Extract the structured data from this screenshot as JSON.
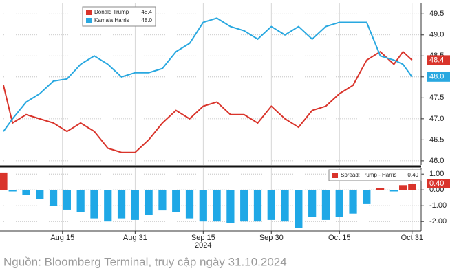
{
  "chart_data": [
    {
      "type": "line",
      "x": [
        "2024-08-02",
        "2024-08-04",
        "2024-08-07",
        "2024-08-10",
        "2024-08-13",
        "2024-08-16",
        "2024-08-19",
        "2024-08-22",
        "2024-08-25",
        "2024-08-28",
        "2024-08-31",
        "2024-09-03",
        "2024-09-06",
        "2024-09-09",
        "2024-09-12",
        "2024-09-15",
        "2024-09-18",
        "2024-09-21",
        "2024-09-24",
        "2024-09-27",
        "2024-09-30",
        "2024-10-03",
        "2024-10-06",
        "2024-10-09",
        "2024-10-12",
        "2024-10-15",
        "2024-10-18",
        "2024-10-21",
        "2024-10-24",
        "2024-10-27",
        "2024-10-29",
        "2024-10-31"
      ],
      "series": [
        {
          "name": "Donald Trump",
          "color": "#d9342b",
          "legend_value": "48.4",
          "values": [
            47.8,
            46.9,
            47.1,
            47.0,
            46.9,
            46.7,
            46.9,
            46.7,
            46.3,
            46.2,
            46.2,
            46.5,
            46.9,
            47.2,
            47.0,
            47.3,
            47.4,
            47.1,
            47.1,
            46.9,
            47.3,
            47.0,
            46.8,
            47.2,
            47.3,
            47.6,
            47.8,
            48.4,
            48.6,
            48.3,
            48.6,
            48.4
          ]
        },
        {
          "name": "Kamala Harris",
          "color": "#29a8e0",
          "legend_value": "48.0",
          "values": [
            46.7,
            47.0,
            47.4,
            47.6,
            47.9,
            47.95,
            48.3,
            48.5,
            48.3,
            48.0,
            48.1,
            48.1,
            48.2,
            48.6,
            48.8,
            49.3,
            49.4,
            49.2,
            49.1,
            48.9,
            49.2,
            49.0,
            49.2,
            48.9,
            49.2,
            49.3,
            49.3,
            49.3,
            48.5,
            48.4,
            48.3,
            48.0
          ]
        }
      ],
      "xlim": [
        "2024-08-02",
        "2024-11-02"
      ],
      "ylim": [
        45.9,
        49.75
      ],
      "yticks": [
        {
          "value": 46,
          "label": "46.0"
        },
        {
          "value": 46.5,
          "label": "46.5"
        },
        {
          "value": 47,
          "label": "47.0"
        },
        {
          "value": 47.5,
          "label": "47.5"
        },
        {
          "value": 48,
          "label": "48.0"
        },
        {
          "value": 48.5,
          "label": "48.5"
        },
        {
          "value": 49,
          "label": "49.0"
        },
        {
          "value": 49.5,
          "label": "49.5"
        }
      ],
      "grid": true
    },
    {
      "type": "bar",
      "name": "Spread: Trump - Harris",
      "legend_value": "0.40",
      "colors": {
        "positive": "#d9342b",
        "negative": "#1fa8e6"
      },
      "x": [
        "2024-08-02",
        "2024-08-04",
        "2024-08-07",
        "2024-08-10",
        "2024-08-13",
        "2024-08-16",
        "2024-08-19",
        "2024-08-22",
        "2024-08-25",
        "2024-08-28",
        "2024-08-31",
        "2024-09-03",
        "2024-09-06",
        "2024-09-09",
        "2024-09-12",
        "2024-09-15",
        "2024-09-18",
        "2024-09-21",
        "2024-09-24",
        "2024-09-27",
        "2024-09-30",
        "2024-10-03",
        "2024-10-06",
        "2024-10-09",
        "2024-10-12",
        "2024-10-15",
        "2024-10-18",
        "2024-10-21",
        "2024-10-24",
        "2024-10-27",
        "2024-10-29",
        "2024-10-31"
      ],
      "values": [
        1.1,
        -0.1,
        -0.3,
        -0.6,
        -1.0,
        -1.25,
        -1.4,
        -1.8,
        -2.0,
        -1.8,
        -1.9,
        -1.6,
        -1.3,
        -1.4,
        -1.8,
        -2.0,
        -2.0,
        -2.1,
        -2.0,
        -2.0,
        -1.9,
        -2.0,
        -2.4,
        -1.7,
        -1.9,
        -1.7,
        -1.5,
        -0.9,
        0.1,
        -0.1,
        0.3,
        0.4
      ],
      "xlim": [
        "2024-08-02",
        "2024-11-02"
      ],
      "ylim": [
        -2.6,
        1.4
      ],
      "yticks": [
        {
          "value": 1,
          "label": "1.00"
        },
        {
          "value": 0,
          "label": "0.00"
        },
        {
          "value": -1,
          "label": "-1.00"
        },
        {
          "value": -2,
          "label": "-2.00"
        }
      ],
      "xticks": [
        {
          "value": "2024-08-15",
          "label": "Aug 15"
        },
        {
          "value": "2024-08-31",
          "label": "Aug 31"
        },
        {
          "value": "2024-09-15",
          "label": "Sep 15"
        },
        {
          "value": "2024-09-30",
          "label": "Sep 30"
        },
        {
          "value": "2024-10-15",
          "label": "Oct 15"
        },
        {
          "value": "2024-10-31",
          "label": "Oct 31"
        }
      ],
      "xlabel": "2024",
      "grid": true
    }
  ],
  "source": "Nguồn: Bloomberg Terminal, truy cập ngày  31.10.2024"
}
